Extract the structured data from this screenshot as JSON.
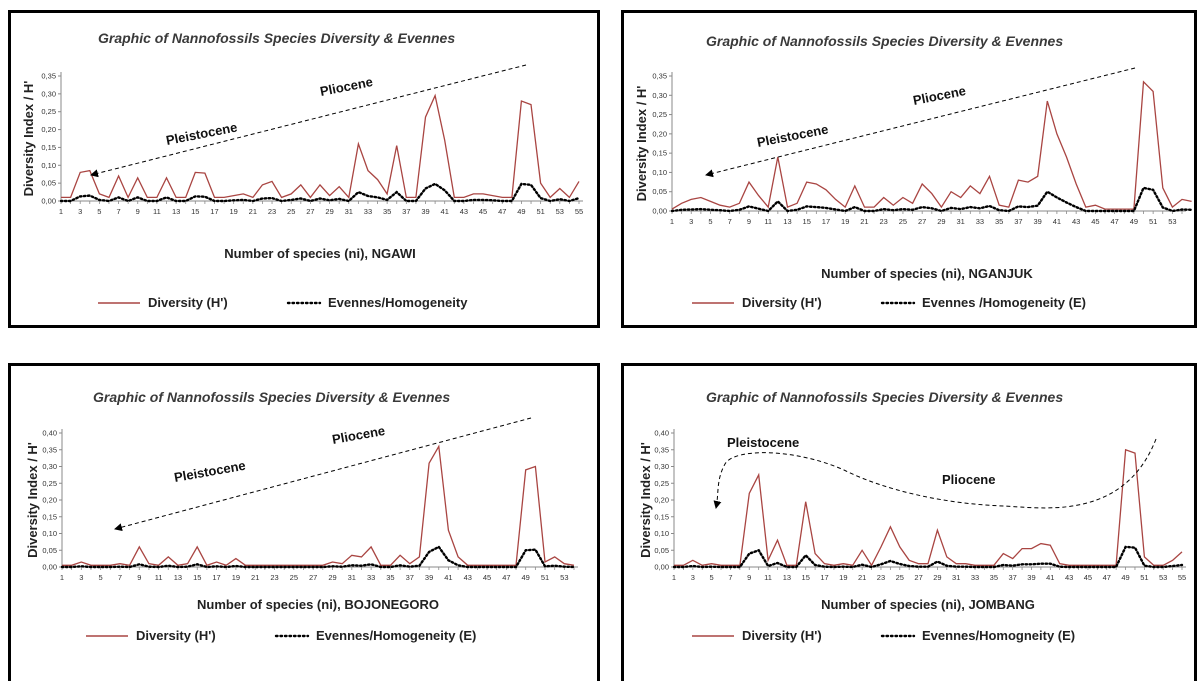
{
  "colors": {
    "diversity": "#a94542",
    "evennes": "#000000",
    "axis": "#8a8a8a",
    "border": "#000000"
  },
  "chart_data": [
    {
      "type": "line",
      "title": "Graphic of Nannofossils  Species Diversity & Evennes",
      "xlabel": "Number of species (ni),  NGAWI",
      "ylabel": "Diversity Index / H'",
      "xlim": [
        1,
        55
      ],
      "ylim": [
        0,
        0.35
      ],
      "ystep": 0.05,
      "ytick_labels": [
        "0,00",
        "0,05",
        "0,10",
        "0,15",
        "0,20",
        "0,25",
        "0,30",
        "0,35"
      ],
      "x_ticks": [
        1,
        3,
        5,
        7,
        9,
        11,
        13,
        15,
        17,
        19,
        21,
        23,
        25,
        27,
        29,
        31,
        33,
        35,
        37,
        39,
        41,
        43,
        45,
        47,
        49,
        51,
        53,
        55
      ],
      "annotations": [
        "Pliocene",
        "Pleistocene"
      ],
      "series": [
        {
          "name": "Diversity (H')",
          "style": "solid",
          "values": [
            0.01,
            0.01,
            0.08,
            0.085,
            0.02,
            0.01,
            0.07,
            0.01,
            0.065,
            0.01,
            0.01,
            0.065,
            0.01,
            0.01,
            0.08,
            0.078,
            0.01,
            0.01,
            0.015,
            0.02,
            0.01,
            0.045,
            0.055,
            0.01,
            0.02,
            0.045,
            0.01,
            0.045,
            0.015,
            0.04,
            0.01,
            0.16,
            0.085,
            0.06,
            0.02,
            0.155,
            0.01,
            0.01,
            0.235,
            0.295,
            0.17,
            0.01,
            0.01,
            0.02,
            0.02,
            0.015,
            0.01,
            0.01,
            0.28,
            0.27,
            0.05,
            0.01,
            0.035,
            0.01,
            0.055
          ]
        },
        {
          "name": "Evennes/Homogeneity",
          "style": "dotted",
          "values": [
            0,
            0,
            0.013,
            0.015,
            0.003,
            0,
            0.01,
            0,
            0.01,
            0,
            0,
            0.01,
            0,
            0,
            0.013,
            0.012,
            0,
            0,
            0.002,
            0.003,
            0,
            0.007,
            0.008,
            0,
            0.003,
            0.007,
            0,
            0.007,
            0.002,
            0.006,
            0,
            0.025,
            0.014,
            0.01,
            0.003,
            0.025,
            0,
            0,
            0.035,
            0.048,
            0.03,
            0,
            0,
            0.003,
            0.003,
            0.002,
            0,
            0,
            0.048,
            0.045,
            0.008,
            0,
            0.005,
            0,
            0.008
          ]
        }
      ],
      "legend": [
        "Diversity (H')",
        "Evennes/Homogeneity"
      ]
    },
    {
      "type": "line",
      "title": "Graphic of Nannofossils  Species Diversity & Evennes",
      "xlabel": "Number of species (ni), NGANJUK",
      "ylabel": "Diversity Index / H'",
      "xlim": [
        1,
        54
      ],
      "ylim": [
        0,
        0.35
      ],
      "ystep": 0.05,
      "ytick_labels": [
        "0,00",
        "0,05",
        "0,10",
        "0,15",
        "0,20",
        "0,25",
        "0,30",
        "0,35"
      ],
      "x_ticks": [
        1,
        3,
        5,
        7,
        9,
        11,
        13,
        15,
        17,
        19,
        21,
        23,
        25,
        27,
        29,
        31,
        33,
        35,
        37,
        39,
        41,
        43,
        45,
        47,
        49,
        51,
        53
      ],
      "annotations": [
        "Pliocene",
        "Pleistocene"
      ],
      "series": [
        {
          "name": "Diversity (H')",
          "style": "solid",
          "values": [
            0.005,
            0.02,
            0.03,
            0.035,
            0.025,
            0.015,
            0.01,
            0.02,
            0.075,
            0.04,
            0.01,
            0.14,
            0.01,
            0.02,
            0.075,
            0.07,
            0.055,
            0.03,
            0.01,
            0.065,
            0.01,
            0.01,
            0.035,
            0.015,
            0.035,
            0.02,
            0.07,
            0.045,
            0.01,
            0.05,
            0.035,
            0.065,
            0.045,
            0.09,
            0.015,
            0.01,
            0.08,
            0.075,
            0.09,
            0.285,
            0.2,
            0.14,
            0.07,
            0.01,
            0.015,
            0.005,
            0.005,
            0.005,
            0.005,
            0.335,
            0.31,
            0.06,
            0.01,
            0.03,
            0.025
          ]
        },
        {
          "name": "Evennes /Homogeneity (E)",
          "style": "dotted",
          "values": [
            0,
            0.003,
            0.004,
            0.005,
            0.003,
            0.002,
            0,
            0.003,
            0.012,
            0.006,
            0,
            0.025,
            0,
            0.003,
            0.012,
            0.01,
            0.008,
            0.004,
            0,
            0.01,
            0,
            0,
            0.005,
            0.002,
            0.005,
            0.003,
            0.01,
            0.007,
            0,
            0.008,
            0.005,
            0.01,
            0.007,
            0.013,
            0.002,
            0,
            0.012,
            0.01,
            0.014,
            0.05,
            0.035,
            0.022,
            0.01,
            0,
            0,
            0,
            0,
            0,
            0,
            0.06,
            0.055,
            0.009,
            0,
            0.004,
            0.003
          ]
        }
      ],
      "legend": [
        "Diversity (H')",
        "Evennes /Homogeneity (E)"
      ]
    },
    {
      "type": "line",
      "title": "Graphic of Nannofossils  Species Diversity & Evennes",
      "xlabel": "Number of species (ni), BOJONEGORO",
      "ylabel": "Diversity Index / H'",
      "xlim": [
        1,
        54
      ],
      "ylim": [
        0,
        0.4
      ],
      "ystep": 0.05,
      "ytick_labels": [
        "0,00",
        "0,05",
        "0,10",
        "0,15",
        "0,20",
        "0,25",
        "0,30",
        "0,35",
        "0,40"
      ],
      "x_ticks": [
        1,
        3,
        5,
        7,
        9,
        11,
        13,
        15,
        17,
        19,
        21,
        23,
        25,
        27,
        29,
        31,
        33,
        35,
        37,
        39,
        41,
        43,
        45,
        47,
        49,
        51,
        53
      ],
      "annotations": [
        "Pliocene",
        "Pleistocene"
      ],
      "series": [
        {
          "name": "Diversity (H')",
          "style": "solid",
          "values": [
            0.005,
            0.005,
            0.015,
            0.005,
            0.005,
            0.005,
            0.01,
            0.005,
            0.06,
            0.01,
            0.005,
            0.03,
            0.005,
            0.01,
            0.06,
            0.005,
            0.015,
            0.005,
            0.025,
            0.005,
            0.005,
            0.005,
            0.005,
            0.005,
            0.005,
            0.005,
            0.005,
            0.005,
            0.015,
            0.01,
            0.035,
            0.03,
            0.06,
            0.005,
            0.005,
            0.035,
            0.01,
            0.03,
            0.31,
            0.36,
            0.11,
            0.03,
            0.005,
            0.005,
            0.005,
            0.005,
            0.005,
            0.005,
            0.29,
            0.3,
            0.015,
            0.03,
            0.01,
            0.005
          ]
        },
        {
          "name": "Evennes/Homogeneity (E)",
          "style": "dotted",
          "values": [
            0,
            0,
            0.002,
            0,
            0,
            0,
            0.001,
            0,
            0.008,
            0.001,
            0,
            0.004,
            0,
            0.001,
            0.008,
            0,
            0.002,
            0,
            0.003,
            0,
            0,
            0,
            0,
            0,
            0,
            0,
            0,
            0,
            0.002,
            0.001,
            0.005,
            0.004,
            0.008,
            0,
            0,
            0.005,
            0.001,
            0.004,
            0.045,
            0.06,
            0.02,
            0.005,
            0,
            0,
            0,
            0,
            0,
            0,
            0.05,
            0.052,
            0.002,
            0.004,
            0.001,
            0
          ]
        }
      ],
      "legend": [
        "Diversity (H')",
        "Evennes/Homogeneity (E)"
      ]
    },
    {
      "type": "line",
      "title": "Graphic of Nannofossils  Species Diversity & Evennes",
      "xlabel": "Number of species (ni), JOMBANG",
      "ylabel": "Diversity Index / H'",
      "xlim": [
        1,
        55
      ],
      "ylim": [
        0,
        0.4
      ],
      "ystep": 0.05,
      "ytick_labels": [
        "0,00",
        "0,05",
        "0,10",
        "0,15",
        "0,20",
        "0,25",
        "0,30",
        "0,35",
        "0,40"
      ],
      "x_ticks": [
        1,
        3,
        5,
        7,
        9,
        11,
        13,
        15,
        17,
        19,
        21,
        23,
        25,
        27,
        29,
        31,
        33,
        35,
        37,
        39,
        41,
        43,
        45,
        47,
        49,
        51,
        53,
        55
      ],
      "annotations": [
        "Pleistocene",
        "Pliocene"
      ],
      "series": [
        {
          "name": "Diversity (H')",
          "style": "solid",
          "values": [
            0.005,
            0.005,
            0.02,
            0.005,
            0.01,
            0.005,
            0.005,
            0.005,
            0.22,
            0.275,
            0.02,
            0.08,
            0.005,
            0.005,
            0.195,
            0.04,
            0.01,
            0.005,
            0.01,
            0.005,
            0.05,
            0.005,
            0.06,
            0.12,
            0.06,
            0.02,
            0.01,
            0.01,
            0.11,
            0.03,
            0.01,
            0.01,
            0.005,
            0.005,
            0.005,
            0.04,
            0.025,
            0.055,
            0.055,
            0.07,
            0.065,
            0.01,
            0.005,
            0.005,
            0.005,
            0.005,
            0.005,
            0.005,
            0.35,
            0.34,
            0.03,
            0.005,
            0.005,
            0.02,
            0.045
          ]
        },
        {
          "name": "Evennes/Homogneity (E)",
          "style": "dotted",
          "values": [
            0,
            0,
            0.003,
            0,
            0.001,
            0,
            0,
            0,
            0.04,
            0.05,
            0.003,
            0.012,
            0,
            0,
            0.035,
            0.006,
            0.001,
            0,
            0.001,
            0,
            0.007,
            0,
            0.008,
            0.018,
            0.009,
            0.003,
            0.001,
            0.001,
            0.016,
            0.004,
            0.001,
            0.001,
            0,
            0,
            0,
            0.006,
            0.004,
            0.008,
            0.008,
            0.01,
            0.01,
            0.001,
            0,
            0,
            0,
            0,
            0,
            0,
            0.06,
            0.058,
            0.004,
            0,
            0,
            0.003,
            0.006
          ]
        }
      ],
      "legend": [
        "Diversity (H')",
        "Evennes/Homogneity (E)"
      ]
    }
  ]
}
